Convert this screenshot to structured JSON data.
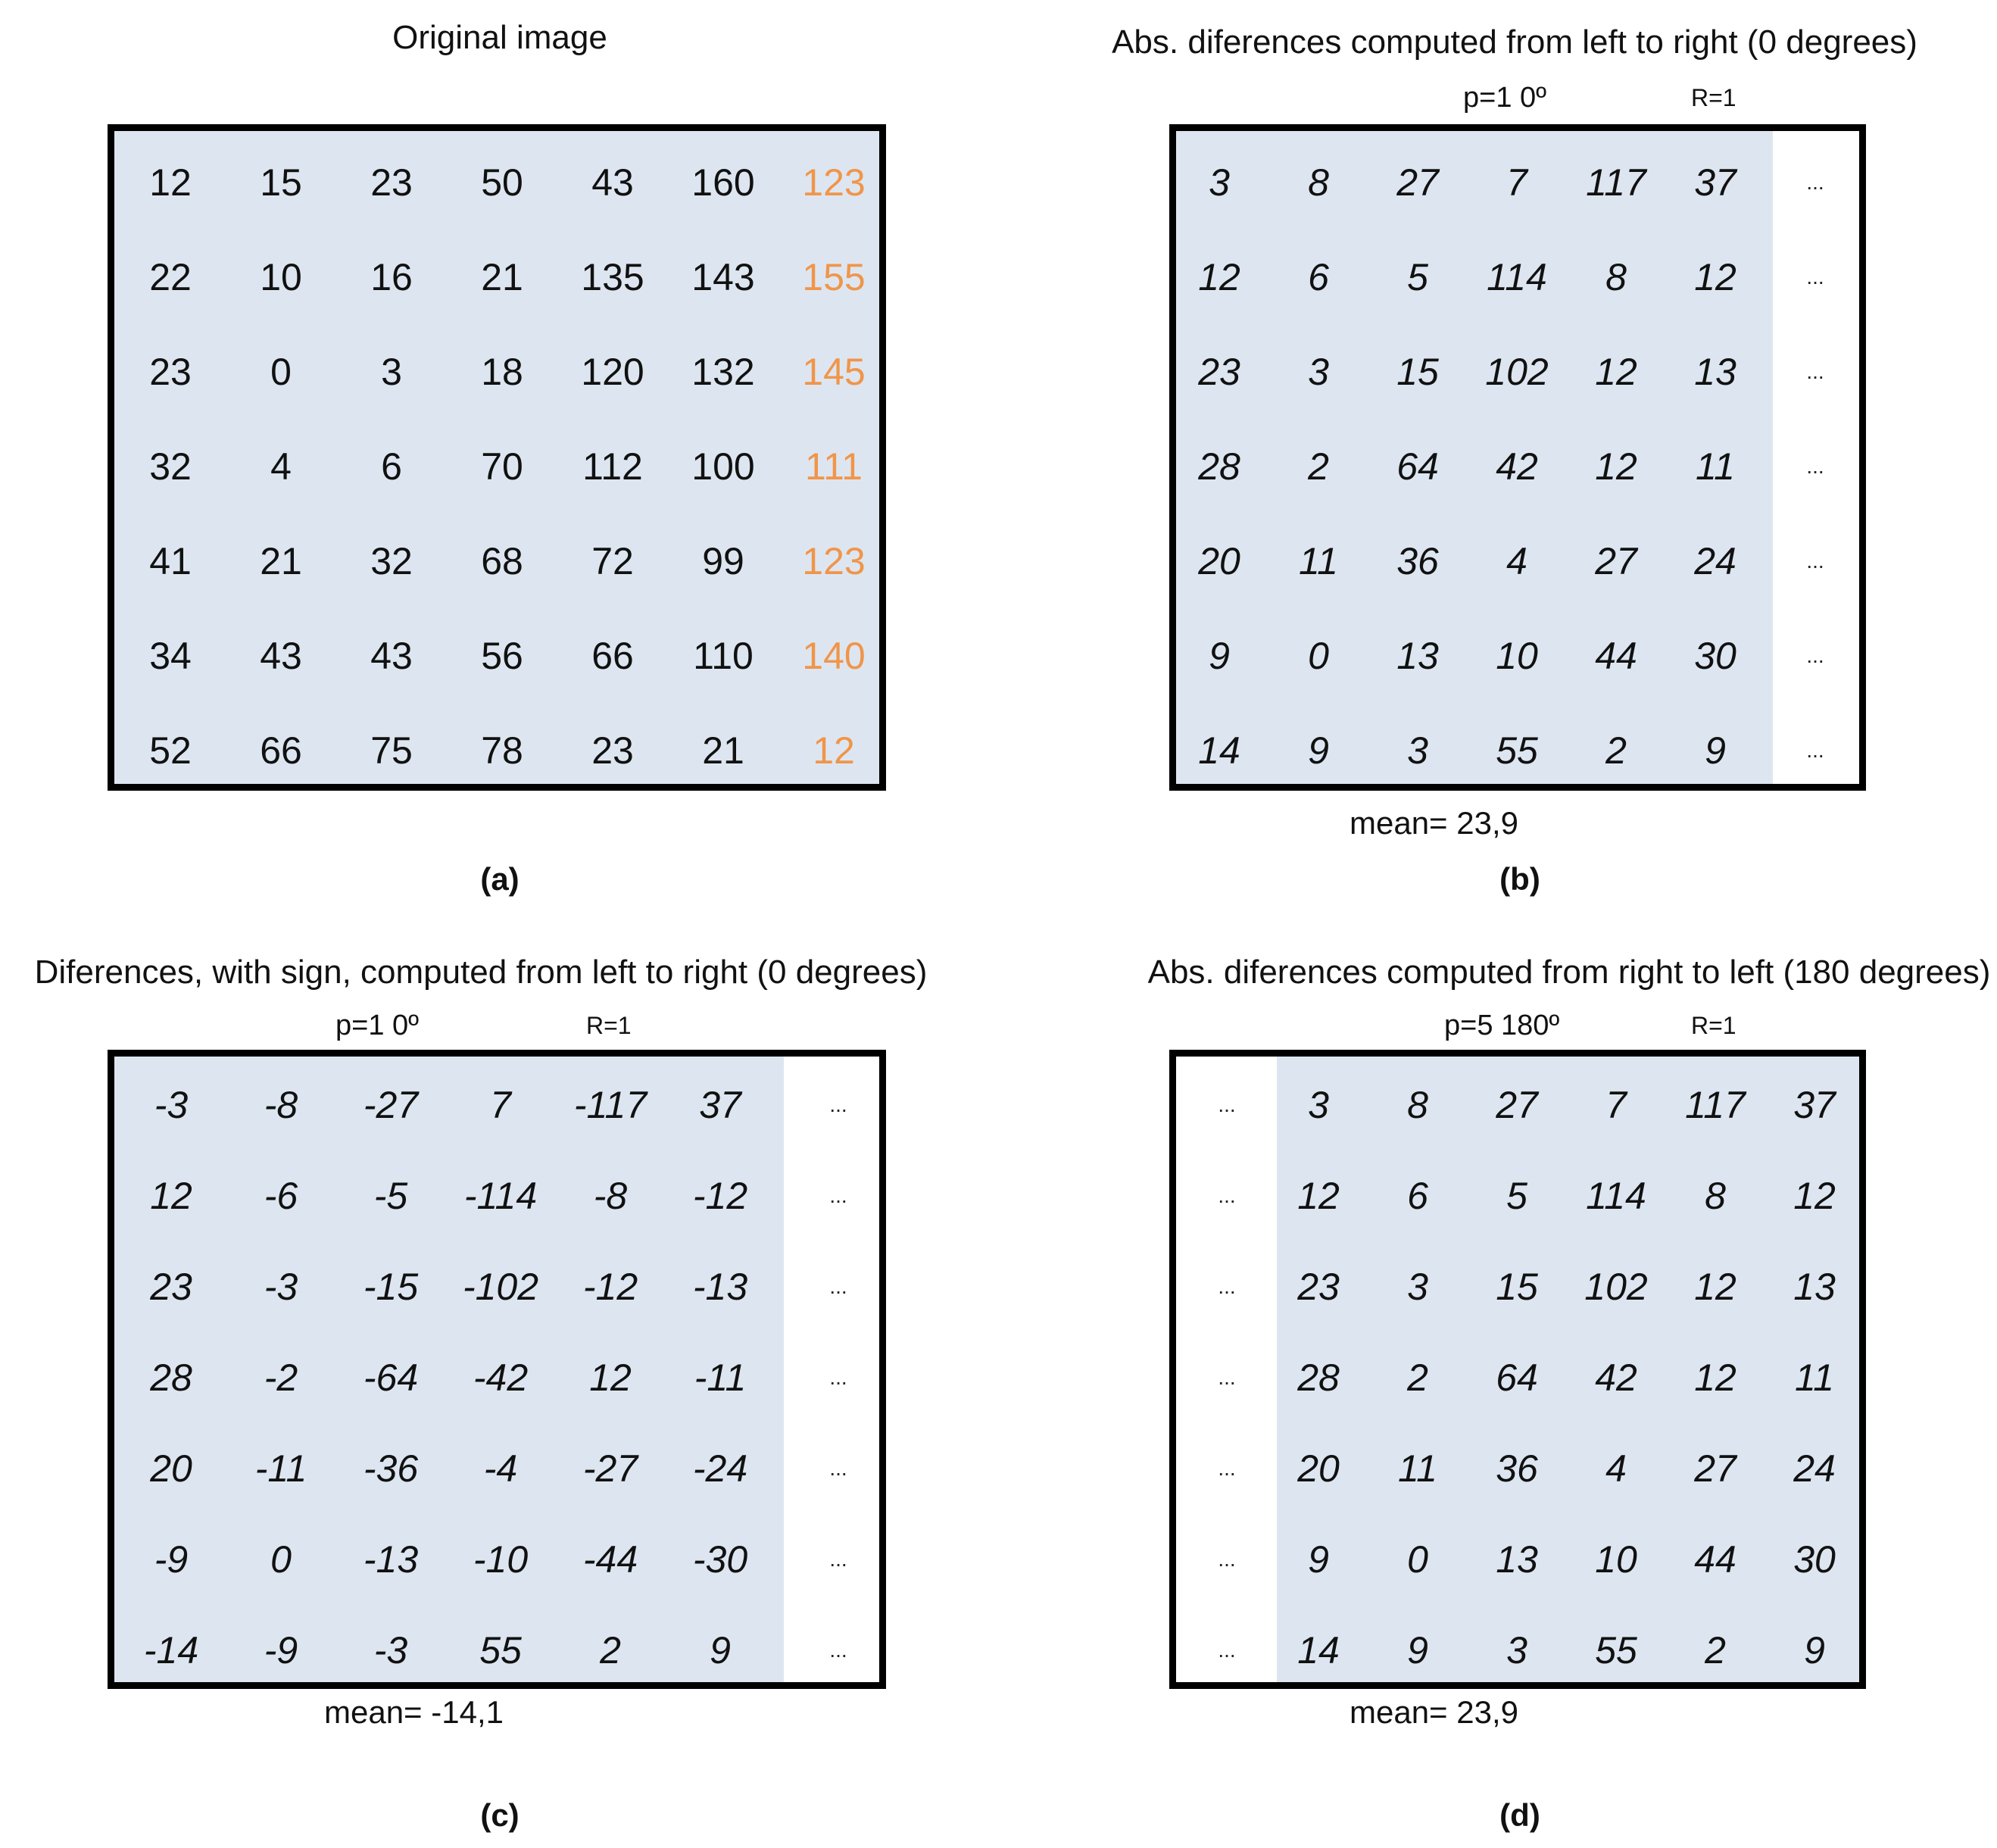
{
  "panel_a": {
    "title": "Original image",
    "caption": "(a)",
    "rows": [
      [
        "12",
        "15",
        "23",
        "50",
        "43",
        "160",
        "123"
      ],
      [
        "22",
        "10",
        "16",
        "21",
        "135",
        "143",
        "155"
      ],
      [
        "23",
        "0",
        "3",
        "18",
        "120",
        "132",
        "145"
      ],
      [
        "32",
        "4",
        "6",
        "70",
        "112",
        "100",
        "111"
      ],
      [
        "41",
        "21",
        "32",
        "68",
        "72",
        "99",
        "123"
      ],
      [
        "34",
        "43",
        "43",
        "56",
        "66",
        "110",
        "140"
      ],
      [
        "52",
        "66",
        "75",
        "78",
        "23",
        "21",
        "12"
      ]
    ],
    "highlight_color": "#f0954a"
  },
  "panel_b": {
    "title": "Abs. diferences computed from left to right (0 degrees)",
    "param_p": "p=1  0º",
    "param_r": "R=1",
    "rows": [
      [
        "3",
        "8",
        "27",
        "7",
        "117",
        "37"
      ],
      [
        "12",
        "6",
        "5",
        "114",
        "8",
        "12"
      ],
      [
        "23",
        "3",
        "15",
        "102",
        "12",
        "13"
      ],
      [
        "28",
        "2",
        "64",
        "42",
        "12",
        "11"
      ],
      [
        "20",
        "11",
        "36",
        "4",
        "27",
        "24"
      ],
      [
        "9",
        "0",
        "13",
        "10",
        "44",
        "30"
      ],
      [
        "14",
        "9",
        "3",
        "55",
        "2",
        "9"
      ]
    ],
    "ellipsis": "...",
    "mean": "mean=  23,9",
    "caption": "(b)"
  },
  "panel_c": {
    "title": "Diferences, with sign, computed from left to right (0 degrees)",
    "param_p": "p=1  0º",
    "param_r": "R=1",
    "rows": [
      [
        "-3",
        "-8",
        "-27",
        "7",
        "-117",
        "37"
      ],
      [
        "12",
        "-6",
        "-5",
        "-114",
        "-8",
        "-12"
      ],
      [
        "23",
        "-3",
        "-15",
        "-102",
        "-12",
        "-13"
      ],
      [
        "28",
        "-2",
        "-64",
        "-42",
        "12",
        "-11"
      ],
      [
        "20",
        "-11",
        "-36",
        "-4",
        "-27",
        "-24"
      ],
      [
        "-9",
        "0",
        "-13",
        "-10",
        "-44",
        "-30"
      ],
      [
        "-14",
        "-9",
        "-3",
        "55",
        "2",
        "9"
      ]
    ],
    "ellipsis": "...",
    "mean": "mean=  -14,1",
    "caption": "(c)"
  },
  "panel_d": {
    "title": "Abs. diferences computed from right to left  (180 degrees)",
    "param_p": "p=5  180º",
    "param_r": "R=1",
    "rows": [
      [
        "3",
        "8",
        "27",
        "7",
        "117",
        "37"
      ],
      [
        "12",
        "6",
        "5",
        "114",
        "8",
        "12"
      ],
      [
        "23",
        "3",
        "15",
        "102",
        "12",
        "13"
      ],
      [
        "28",
        "2",
        "64",
        "42",
        "12",
        "11"
      ],
      [
        "20",
        "11",
        "36",
        "4",
        "27",
        "24"
      ],
      [
        "9",
        "0",
        "13",
        "10",
        "44",
        "30"
      ],
      [
        "14",
        "9",
        "3",
        "55",
        "2",
        "9"
      ]
    ],
    "ellipsis": "...",
    "mean": "mean=  23,9",
    "caption": "(d)"
  },
  "shade_color": "#dde6f0"
}
